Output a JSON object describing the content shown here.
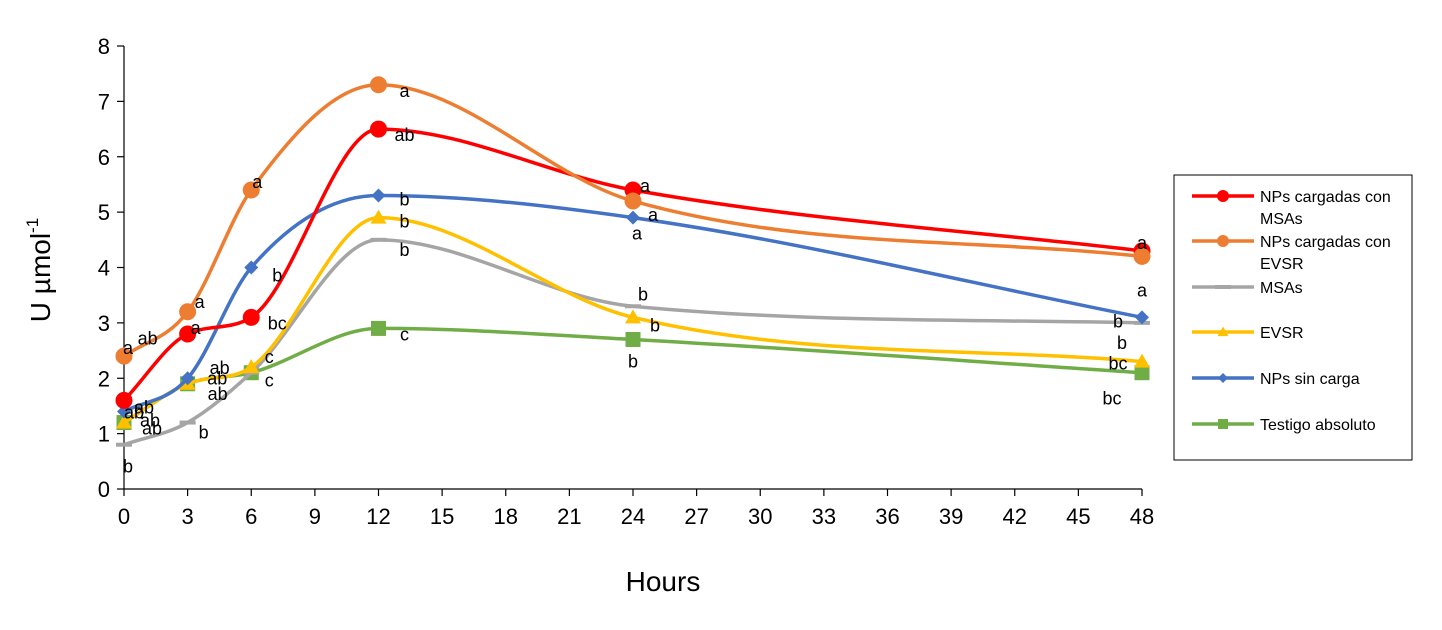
{
  "chart_data": {
    "type": "line",
    "xlabel": "Hours",
    "ylabel": "U µmol",
    "ylabel_sup": "-1",
    "xlim": [
      0,
      48
    ],
    "ylim": [
      0,
      8
    ],
    "x_ticks": [
      "0",
      "3",
      "6",
      "9",
      "12",
      "15",
      "18",
      "21",
      "24",
      "27",
      "30",
      "33",
      "36",
      "39",
      "42",
      "45",
      "48"
    ],
    "y_ticks": [
      "0",
      "1",
      "2",
      "3",
      "4",
      "5",
      "6",
      "7",
      "8"
    ],
    "grid": false,
    "legend_position": "right",
    "x": [
      0,
      3,
      6,
      12,
      24,
      48
    ],
    "series": [
      {
        "name": "NPs cargadas con MSAs",
        "name_lines": [
          "NPs cargadas con",
          "MSAs"
        ],
        "color": "#FF0000",
        "marker": "circle",
        "values": [
          1.6,
          2.8,
          3.1,
          6.5,
          5.4,
          4.3
        ],
        "labels": [
          "ab",
          "a",
          "bc",
          "ab",
          "a",
          "a"
        ]
      },
      {
        "name": "NPs cargadas con EVSR",
        "name_lines": [
          "NPs cargadas con",
          "EVSR"
        ],
        "color": "#ED7D31",
        "marker": "circle",
        "values": [
          2.4,
          3.2,
          5.4,
          7.3,
          5.2,
          4.2
        ],
        "labels": [
          "a",
          "a",
          "a",
          "a",
          "a",
          "a"
        ]
      },
      {
        "name": "MSAs",
        "name_lines": [
          "MSAs"
        ],
        "color": "#A5A5A5",
        "marker": "dash",
        "values": [
          0.8,
          1.2,
          2.1,
          4.5,
          3.3,
          3.0
        ],
        "labels": [
          "b",
          "b",
          "ab",
          "b",
          "b",
          "b"
        ]
      },
      {
        "name": "EVSR",
        "name_lines": [
          "EVSR"
        ],
        "color": "#FFC000",
        "marker": "triangle",
        "values": [
          1.2,
          1.9,
          2.2,
          4.9,
          3.1,
          2.3
        ],
        "labels": [
          "ab",
          "ab",
          "c",
          "b",
          "b",
          "bc"
        ]
      },
      {
        "name": "NPs sin carga",
        "name_lines": [
          "NPs sin carga"
        ],
        "color": "#4472C4",
        "marker": "diamond",
        "values": [
          1.4,
          2.0,
          4.0,
          5.3,
          4.9,
          3.1
        ],
        "labels": [
          "ab",
          "ab",
          "b",
          "b",
          "a",
          "b"
        ]
      },
      {
        "name": "Testigo absoluto",
        "name_lines": [
          "Testigo absoluto"
        ],
        "color": "#70AD47",
        "marker": "square",
        "values": [
          1.2,
          1.9,
          2.1,
          2.9,
          2.7,
          2.1
        ],
        "labels": [
          "ab",
          "ab",
          "c",
          "c",
          "b",
          "bc"
        ]
      }
    ]
  }
}
